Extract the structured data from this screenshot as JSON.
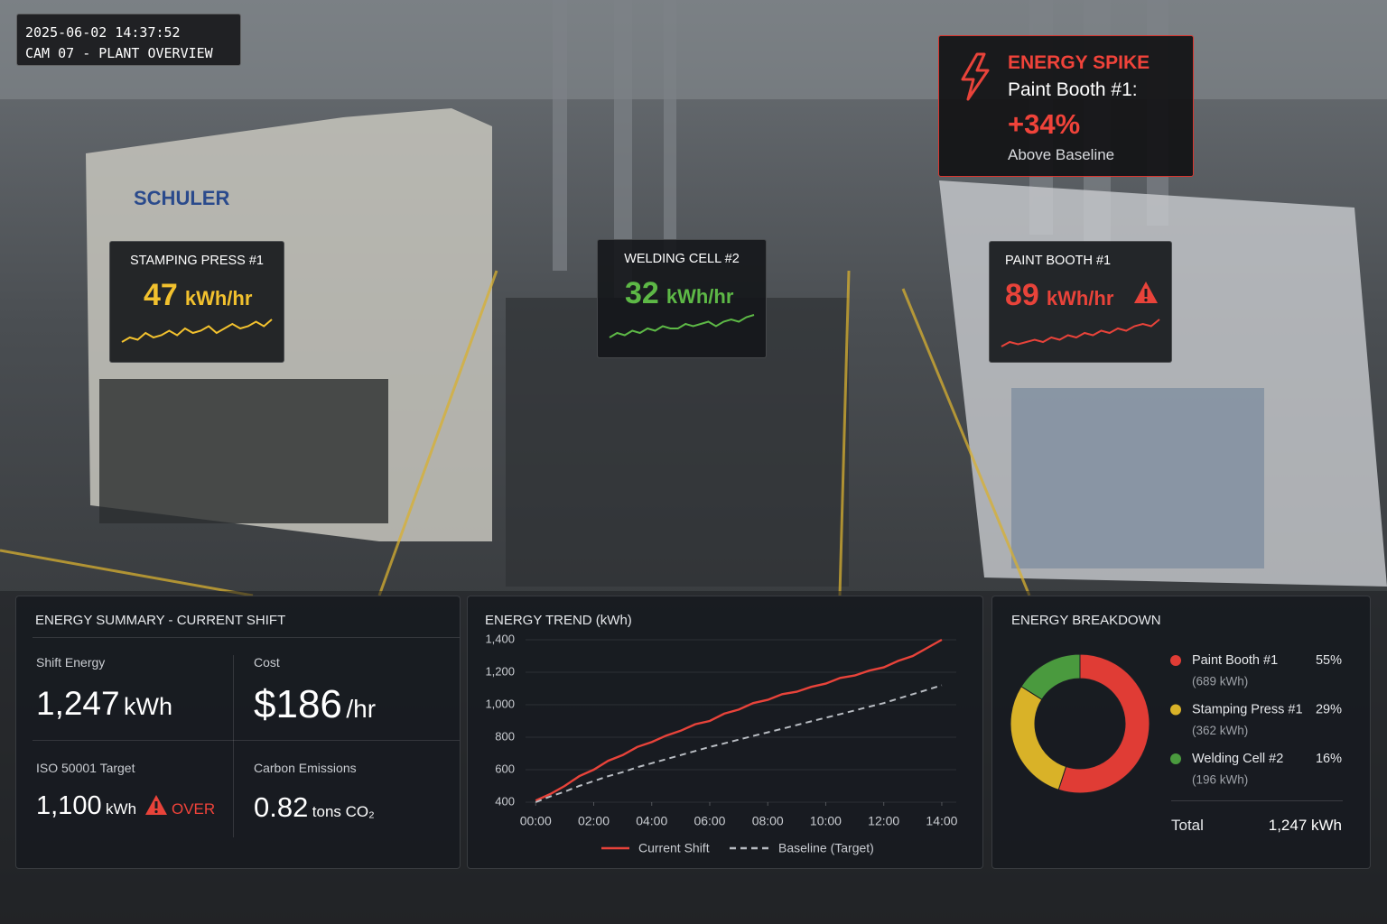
{
  "camera": {
    "timestamp": "2025-06-02 14:37:52",
    "label": "CAM 07 - PLANT OVERVIEW"
  },
  "background_sign": "SCHULER",
  "alert": {
    "title": "ENERGY SPIKE",
    "location": "Paint Booth #1:",
    "change": "+34%",
    "note": "Above Baseline"
  },
  "machines": [
    {
      "name": "STAMPING PRESS #1",
      "value": 47,
      "unit": "kWh/hr",
      "color": "#f2c12e",
      "trend": [
        3,
        4,
        3.5,
        5,
        4,
        4.5,
        5.5,
        4.5,
        6,
        5,
        5.5,
        6.5,
        5,
        6,
        7,
        6,
        6.5,
        7.5,
        6.5,
        8
      ]
    },
    {
      "name": "WELDING CELL #2",
      "value": 32,
      "unit": "kWh/hr",
      "color": "#5db846",
      "trend": [
        3,
        4,
        3.5,
        4.5,
        4,
        5,
        4.5,
        5.5,
        5,
        5,
        6,
        5.5,
        6,
        6.5,
        5.5,
        6.5,
        7,
        6.5,
        7.5,
        8
      ]
    },
    {
      "name": "PAINT BOOTH #1",
      "value": 89,
      "unit": "kWh/hr",
      "color": "#e8433a",
      "trend": [
        2,
        3,
        2.5,
        3,
        3.5,
        3,
        4,
        3.5,
        4.5,
        4,
        5,
        4.5,
        5.5,
        5,
        6,
        5.5,
        6.5,
        7,
        6.5,
        8
      ]
    }
  ],
  "summary": {
    "title": "ENERGY SUMMARY - CURRENT SHIFT",
    "shift_energy": {
      "label": "Shift Energy",
      "value": "1,247",
      "unit": "kWh"
    },
    "cost": {
      "label": "Cost",
      "value": "$186",
      "unit": "/hr"
    },
    "target": {
      "label": "ISO 50001 Target",
      "value": "1,100",
      "unit": "kWh",
      "status": "OVER"
    },
    "carbon": {
      "label": "Carbon Emissions",
      "value": 0.82,
      "unit": "tons CO₂"
    }
  },
  "chart_data": [
    {
      "type": "line",
      "title": "ENERGY TREND (kWh)",
      "x": [
        0,
        0.5,
        1,
        1.5,
        2,
        2.5,
        3,
        3.5,
        4,
        4.5,
        5,
        5.5,
        6,
        6.5,
        7,
        7.5,
        8,
        8.5,
        9,
        9.5,
        10,
        10.5,
        11,
        11.5,
        12,
        12.5,
        13,
        13.5,
        14
      ],
      "series": [
        {
          "name": "Current Shift",
          "color": "#e8433a",
          "style": "solid",
          "values": [
            410,
            450,
            500,
            560,
            600,
            655,
            690,
            740,
            770,
            810,
            840,
            880,
            900,
            945,
            970,
            1010,
            1030,
            1065,
            1080,
            1110,
            1130,
            1165,
            1180,
            1210,
            1230,
            1270,
            1300,
            1350,
            1400
          ]
        },
        {
          "name": "Baseline (Target)",
          "color": "#b8bcc2",
          "style": "dashed",
          "values": [
            400,
            435,
            465,
            500,
            530,
            560,
            585,
            615,
            640,
            665,
            690,
            715,
            740,
            762,
            785,
            808,
            830,
            852,
            875,
            898,
            920,
            942,
            965,
            988,
            1010,
            1038,
            1065,
            1092,
            1120
          ]
        }
      ],
      "xlim": [
        -0.35,
        14.5
      ],
      "xticks": [
        {
          "value": 0,
          "label": "00:00"
        },
        {
          "value": 2,
          "label": "02:00"
        },
        {
          "value": 4,
          "label": "04:00"
        },
        {
          "value": 6,
          "label": "06:00"
        },
        {
          "value": 8,
          "label": "08:00"
        },
        {
          "value": 10,
          "label": "10:00"
        },
        {
          "value": 12,
          "label": "12:00"
        },
        {
          "value": 14,
          "label": "14:00"
        }
      ],
      "ylim": [
        400,
        1400
      ],
      "yticks": [
        400,
        600,
        800,
        {
          "value": 1000,
          "label": "1,000"
        },
        {
          "value": 1200,
          "label": "1,200"
        },
        {
          "value": 1400,
          "label": "1,400"
        }
      ],
      "grid": true
    },
    {
      "type": "pie",
      "title": "ENERGY BREAKDOWN",
      "categories": [
        "Paint Booth #1",
        "Stamping Press #1",
        "Welding Cell #2"
      ],
      "values": [
        55,
        29,
        16
      ],
      "value_labels": [
        "55%",
        "29%",
        "16%"
      ],
      "details": [
        "(689 kWh)",
        "(362 kWh)",
        "(196 kWh)"
      ],
      "colors": [
        "#e03c35",
        "#d9b228",
        "#4a9a3e"
      ],
      "total_label": "Total",
      "total_value": "1,247 kWh"
    }
  ]
}
